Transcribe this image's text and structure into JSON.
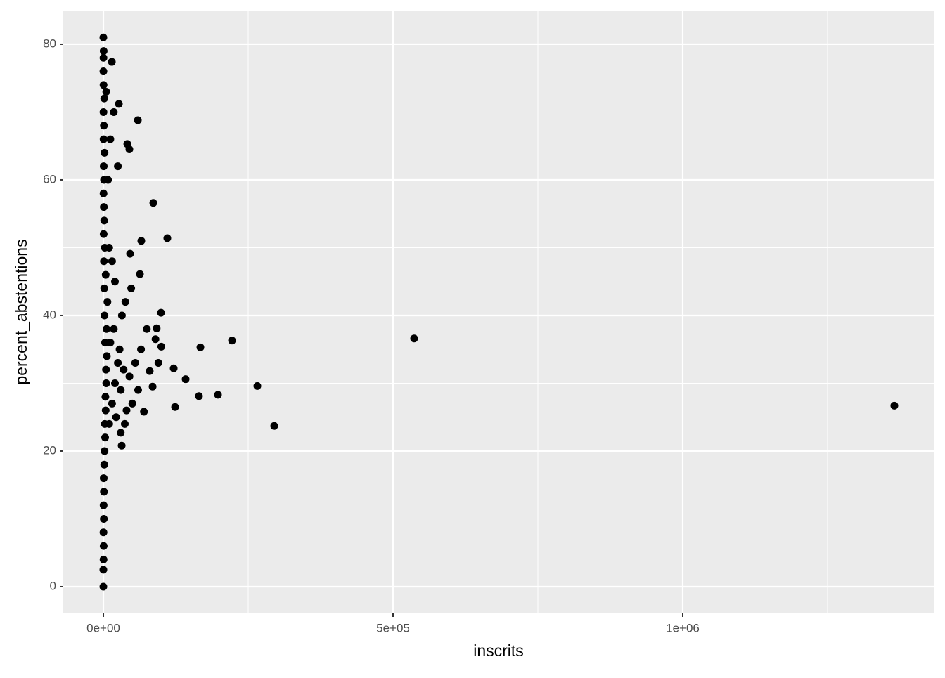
{
  "chart_data": {
    "type": "scatter",
    "x_label": "inscrits",
    "y_label": "percent_abstentions",
    "xlim": [
      -69200,
      1434500
    ],
    "ylim": [
      -3.94,
      84.97
    ],
    "xticks": [
      {
        "value": 0,
        "label": "0e+00"
      },
      {
        "value": 500000,
        "label": "5e+05"
      },
      {
        "value": 1000000,
        "label": "1e+06"
      }
    ],
    "yticks": [
      0,
      20,
      40,
      60,
      80
    ],
    "x_minor_breaks": [
      250000,
      750000,
      1250000
    ],
    "y_minor_breaks": [
      10,
      30,
      50,
      70
    ],
    "grid": true,
    "series": [
      {
        "color": "#000000",
        "x": [
          0,
          0,
          300,
          500,
          200,
          800,
          400,
          1000,
          600,
          1500,
          2000,
          3000,
          2500,
          4000,
          3500,
          5000,
          4500,
          6000,
          3000,
          5500,
          2000,
          7000,
          1500,
          4000,
          1000,
          2500,
          500,
          1500,
          800,
          300,
          1200,
          600,
          2000,
          400,
          900,
          200,
          1500,
          300,
          100,
          200,
          500,
          10000,
          15000,
          20000,
          25000,
          12000,
          18000,
          22000,
          30000,
          35000,
          40000,
          28000,
          45000,
          50000,
          55000,
          60000,
          65000,
          70000,
          75000,
          80000,
          85000,
          90000,
          95000,
          32000,
          38000,
          48000,
          20000,
          15000,
          10000,
          30000,
          37000,
          8000,
          12000,
          25000,
          18000,
          5000,
          31600,
          100000,
          92000,
          1365300,
          536400,
          294900,
          265800,
          222100,
          197800,
          167500,
          165000,
          142000,
          123800,
          121400,
          110400,
          99500,
          86200,
          59500,
          65500,
          63100,
          41300,
          44900,
          46100,
          14600,
          26700,
          0
        ],
        "values": [
          0,
          2.5,
          4,
          6,
          8,
          10,
          12,
          14,
          16,
          18,
          20,
          22,
          24,
          26,
          28,
          30,
          32,
          34,
          36,
          38,
          40,
          42,
          44,
          46,
          48,
          50,
          52,
          54,
          56,
          58,
          60,
          62,
          64,
          66,
          68,
          70,
          72,
          74,
          76,
          78,
          79,
          24,
          27,
          30,
          33,
          36,
          38,
          25,
          29,
          32,
          26,
          35,
          31,
          27,
          33,
          29,
          35,
          25.8,
          38,
          31.8,
          29.5,
          36.5,
          33,
          40,
          42,
          44,
          45,
          48,
          50,
          22.7,
          24,
          60,
          66,
          62,
          70,
          73,
          20.8,
          35.4,
          38.1,
          26.7,
          36.6,
          23.7,
          29.6,
          36.3,
          28.3,
          35.3,
          28.1,
          30.6,
          26.5,
          32.2,
          51.4,
          40.4,
          56.6,
          68.8,
          51.0,
          46.1,
          65.3,
          64.5,
          49.1,
          77.4,
          71.2,
          81.0
        ]
      }
    ]
  }
}
